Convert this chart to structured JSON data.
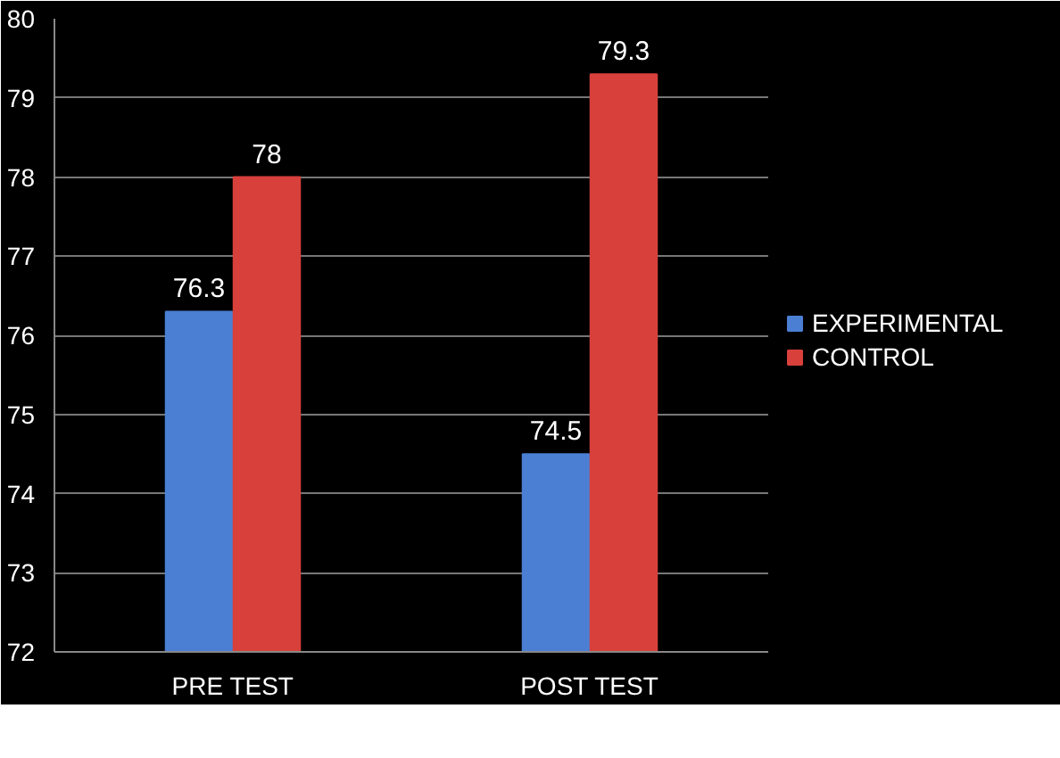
{
  "chart_data": {
    "type": "bar",
    "categories": [
      "PRE TEST",
      "POST TEST"
    ],
    "series": [
      {
        "name": "EXPERIMENTAL",
        "color": "#4a7fd4",
        "values": [
          76.3,
          74.5
        ]
      },
      {
        "name": "CONTROL",
        "color": "#d8403c",
        "values": [
          78,
          79.3
        ]
      }
    ],
    "ylim": [
      72,
      80
    ],
    "yticks": [
      72,
      73,
      74,
      75,
      76,
      77,
      78,
      79,
      80
    ],
    "grid": "y",
    "legend": "right",
    "data_labels": true
  }
}
